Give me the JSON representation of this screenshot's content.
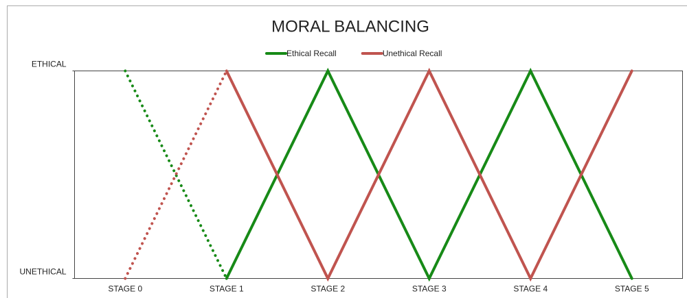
{
  "chart_data": {
    "type": "line",
    "title": "MORAL BALANCING",
    "categories": [
      "STAGE 0",
      "STAGE 1",
      "STAGE 2",
      "STAGE 3",
      "STAGE 4",
      "STAGE 5"
    ],
    "series": [
      {
        "name": "Ethical Recall",
        "color": "#178a17",
        "values": [
          1,
          0,
          1,
          0,
          1,
          0
        ],
        "dotted_segments": [
          0
        ]
      },
      {
        "name": "Unethical Recall",
        "color": "#c0544f",
        "values": [
          0,
          1,
          0,
          1,
          0,
          1
        ],
        "dotted_segments": [
          0
        ]
      }
    ],
    "ylim": [
      0,
      1
    ],
    "yticks": [
      {
        "value": 0,
        "label": "UNETHICAL"
      },
      {
        "value": 1,
        "label": "ETHICAL"
      }
    ],
    "legend": "top",
    "grid": false
  }
}
